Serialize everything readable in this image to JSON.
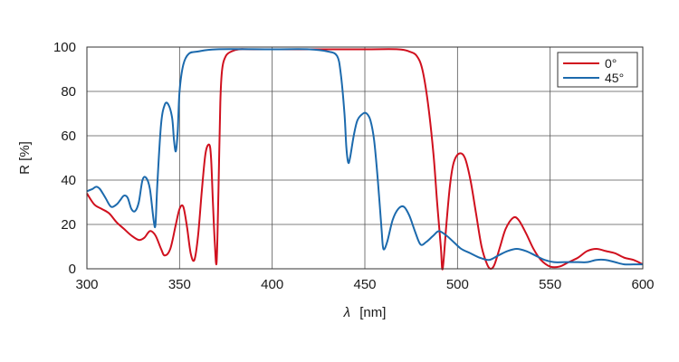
{
  "chart_data": {
    "type": "line",
    "xlabel_symbol": "λ",
    "xlabel_unit": "[nm]",
    "ylabel": "R [%]",
    "xlim": [
      300,
      600
    ],
    "ylim": [
      0,
      100
    ],
    "xticks": [
      "300",
      "350",
      "400",
      "450",
      "500",
      "550",
      "600"
    ],
    "yticks": [
      "0",
      "20",
      "40",
      "60",
      "80",
      "100"
    ],
    "grid": true,
    "legend_position": "top-right",
    "series": [
      {
        "name": "0°",
        "color": "#d0101e",
        "points": [
          [
            300,
            34
          ],
          [
            304,
            29
          ],
          [
            308,
            27
          ],
          [
            312,
            25
          ],
          [
            316,
            21
          ],
          [
            320,
            18
          ],
          [
            324,
            15
          ],
          [
            328,
            13
          ],
          [
            331,
            14
          ],
          [
            334,
            17
          ],
          [
            337,
            15
          ],
          [
            340,
            9
          ],
          [
            342,
            6
          ],
          [
            345,
            9
          ],
          [
            348,
            20
          ],
          [
            350,
            27
          ],
          [
            352,
            28
          ],
          [
            354,
            19
          ],
          [
            356,
            7
          ],
          [
            358,
            4
          ],
          [
            360,
            15
          ],
          [
            362,
            35
          ],
          [
            364,
            52
          ],
          [
            366,
            56
          ],
          [
            367,
            50
          ],
          [
            368,
            30
          ],
          [
            369,
            12
          ],
          [
            370,
            3
          ],
          [
            371,
            35
          ],
          [
            372,
            75
          ],
          [
            373,
            90
          ],
          [
            375,
            96
          ],
          [
            378,
            98
          ],
          [
            382,
            99
          ],
          [
            390,
            99
          ],
          [
            420,
            99
          ],
          [
            450,
            99
          ],
          [
            468,
            99
          ],
          [
            474,
            98
          ],
          [
            478,
            96
          ],
          [
            481,
            90
          ],
          [
            484,
            75
          ],
          [
            487,
            52
          ],
          [
            489,
            30
          ],
          [
            491,
            10
          ],
          [
            492,
            0
          ],
          [
            494,
            20
          ],
          [
            496,
            38
          ],
          [
            498,
            48
          ],
          [
            501,
            52
          ],
          [
            504,
            50
          ],
          [
            507,
            40
          ],
          [
            510,
            25
          ],
          [
            513,
            10
          ],
          [
            516,
            2
          ],
          [
            518,
            0
          ],
          [
            520,
            2
          ],
          [
            523,
            10
          ],
          [
            526,
            18
          ],
          [
            530,
            23
          ],
          [
            533,
            22
          ],
          [
            537,
            16
          ],
          [
            541,
            9
          ],
          [
            545,
            4
          ],
          [
            550,
            1
          ],
          [
            555,
            1
          ],
          [
            560,
            3
          ],
          [
            565,
            5
          ],
          [
            570,
            8
          ],
          [
            575,
            9
          ],
          [
            580,
            8
          ],
          [
            585,
            7
          ],
          [
            590,
            5
          ],
          [
            595,
            4
          ],
          [
            600,
            2
          ]
        ]
      },
      {
        "name": "45°",
        "color": "#1c6aad",
        "points": [
          [
            300,
            35
          ],
          [
            303,
            36
          ],
          [
            305,
            37
          ],
          [
            307,
            36
          ],
          [
            310,
            32
          ],
          [
            313,
            28
          ],
          [
            316,
            29
          ],
          [
            318,
            31
          ],
          [
            320,
            33
          ],
          [
            322,
            32
          ],
          [
            324,
            27
          ],
          [
            326,
            26
          ],
          [
            328,
            30
          ],
          [
            330,
            40
          ],
          [
            332,
            41
          ],
          [
            334,
            36
          ],
          [
            336,
            22
          ],
          [
            337,
            20
          ],
          [
            338,
            38
          ],
          [
            340,
            65
          ],
          [
            342,
            74
          ],
          [
            344,
            74
          ],
          [
            346,
            68
          ],
          [
            347,
            58
          ],
          [
            348,
            53
          ],
          [
            349,
            62
          ],
          [
            350,
            80
          ],
          [
            352,
            92
          ],
          [
            355,
            97
          ],
          [
            360,
            98
          ],
          [
            370,
            99
          ],
          [
            400,
            99
          ],
          [
            420,
            99
          ],
          [
            430,
            98
          ],
          [
            435,
            96
          ],
          [
            437,
            88
          ],
          [
            439,
            70
          ],
          [
            440,
            55
          ],
          [
            441,
            48
          ],
          [
            442,
            50
          ],
          [
            444,
            60
          ],
          [
            446,
            67
          ],
          [
            449,
            70
          ],
          [
            451,
            70
          ],
          [
            453,
            67
          ],
          [
            455,
            58
          ],
          [
            457,
            40
          ],
          [
            459,
            18
          ],
          [
            460,
            9
          ],
          [
            462,
            12
          ],
          [
            465,
            22
          ],
          [
            468,
            27
          ],
          [
            471,
            28
          ],
          [
            474,
            24
          ],
          [
            477,
            17
          ],
          [
            480,
            11
          ],
          [
            483,
            12
          ],
          [
            487,
            15
          ],
          [
            490,
            17
          ],
          [
            494,
            15
          ],
          [
            498,
            12
          ],
          [
            502,
            9
          ],
          [
            507,
            7
          ],
          [
            512,
            5
          ],
          [
            517,
            4
          ],
          [
            522,
            6
          ],
          [
            527,
            8
          ],
          [
            532,
            9
          ],
          [
            537,
            8
          ],
          [
            542,
            6
          ],
          [
            547,
            4
          ],
          [
            552,
            3
          ],
          [
            558,
            3
          ],
          [
            565,
            3
          ],
          [
            570,
            3
          ],
          [
            575,
            4
          ],
          [
            580,
            4
          ],
          [
            585,
            3
          ],
          [
            590,
            2
          ],
          [
            595,
            2
          ],
          [
            600,
            2
          ]
        ]
      }
    ]
  }
}
